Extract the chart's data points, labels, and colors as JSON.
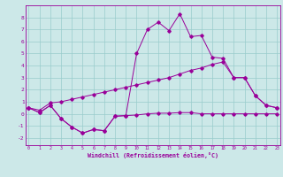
{
  "xlabel": "Windchill (Refroidissement éolien,°C)",
  "bg_color": "#cce8e8",
  "line_color": "#990099",
  "grid_color": "#99cccc",
  "x_ticks": [
    0,
    1,
    2,
    3,
    4,
    5,
    6,
    7,
    8,
    9,
    10,
    11,
    12,
    13,
    14,
    15,
    16,
    17,
    18,
    19,
    20,
    21,
    22,
    23
  ],
  "y_ticks": [
    -2,
    -1,
    0,
    1,
    2,
    3,
    4,
    5,
    6,
    7,
    8
  ],
  "ylim": [
    -2.6,
    9.0
  ],
  "xlim": [
    -0.3,
    23.3
  ],
  "line1_y": [
    0.5,
    0.1,
    0.7,
    -0.4,
    -1.1,
    -1.6,
    -1.3,
    -1.4,
    -0.2,
    -0.15,
    -0.1,
    0.0,
    0.05,
    0.05,
    0.1,
    0.1,
    0.0,
    0.0,
    0.0,
    0.0,
    0.0,
    0.0,
    0.0,
    0.0
  ],
  "line2_y": [
    0.5,
    0.1,
    0.7,
    -0.4,
    -1.1,
    -1.6,
    -1.3,
    -1.4,
    -0.2,
    -0.15,
    5.0,
    7.0,
    7.6,
    6.9,
    8.3,
    6.4,
    6.5,
    4.7,
    4.6,
    3.0,
    3.0,
    1.5,
    0.7,
    0.5
  ],
  "line3_y": [
    0.5,
    0.3,
    0.9,
    1.0,
    1.2,
    1.4,
    1.6,
    1.8,
    2.0,
    2.2,
    2.4,
    2.6,
    2.8,
    3.0,
    3.3,
    3.6,
    3.8,
    4.1,
    4.3,
    3.0,
    3.0,
    1.5,
    0.7,
    0.5
  ]
}
